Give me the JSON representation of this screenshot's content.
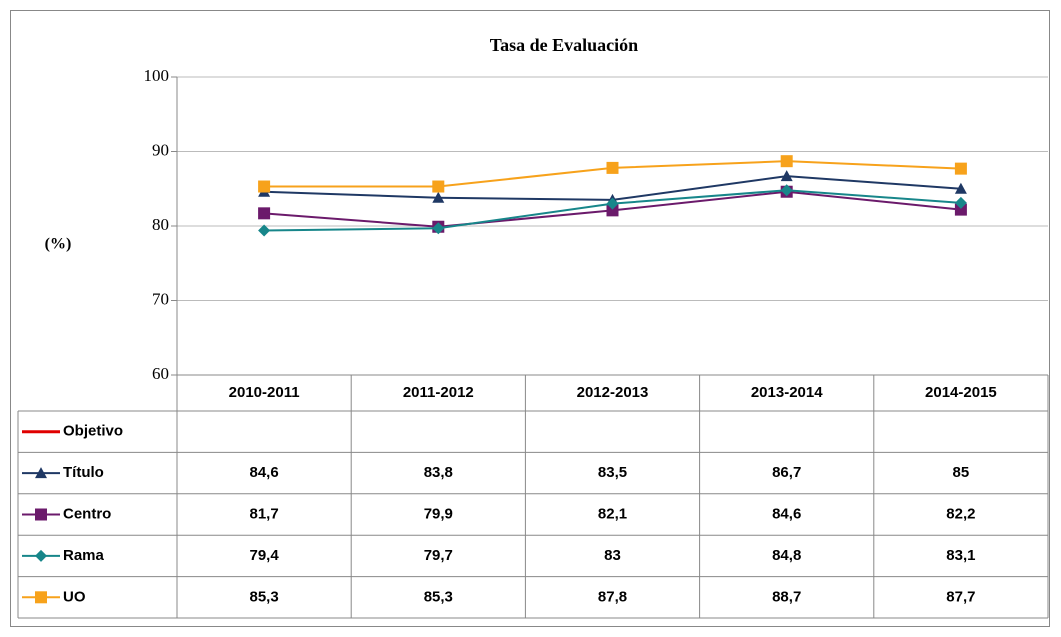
{
  "chart_data": {
    "type": "line",
    "title": "Tasa de Evaluación",
    "y_label": "(%)",
    "categories": [
      "2010-2011",
      "2011-2012",
      "2012-2013",
      "2013-2014",
      "2014-2015"
    ],
    "ylim": [
      60,
      100
    ],
    "yticks": [
      60,
      70,
      80,
      90,
      100
    ],
    "grid": true,
    "series": [
      {
        "name": "Objetivo",
        "color": "#e00000",
        "marker": "none",
        "values": [
          null,
          null,
          null,
          null,
          null
        ]
      },
      {
        "name": "Título",
        "color": "#1f3864",
        "marker": "triangle",
        "values": [
          84.6,
          83.8,
          83.5,
          86.7,
          85
        ],
        "value_labels": [
          "84,6",
          "83,8",
          "83,5",
          "86,7",
          "85"
        ]
      },
      {
        "name": "Centro",
        "color": "#6b1a6b",
        "marker": "square",
        "values": [
          81.7,
          79.9,
          82.1,
          84.6,
          82.2
        ],
        "value_labels": [
          "81,7",
          "79,9",
          "82,1",
          "84,6",
          "82,2"
        ]
      },
      {
        "name": "Rama",
        "color": "#17868a",
        "marker": "diamond",
        "values": [
          79.4,
          79.7,
          83,
          84.8,
          83.1
        ],
        "value_labels": [
          "79,4",
          "79,7",
          "83",
          "84,8",
          "83,1"
        ]
      },
      {
        "name": "UO",
        "color": "#f7a21b",
        "marker": "square",
        "values": [
          85.3,
          85.3,
          87.8,
          88.7,
          87.7
        ],
        "value_labels": [
          "85,3",
          "85,3",
          "87,8",
          "88,7",
          "87,7"
        ]
      }
    ]
  }
}
